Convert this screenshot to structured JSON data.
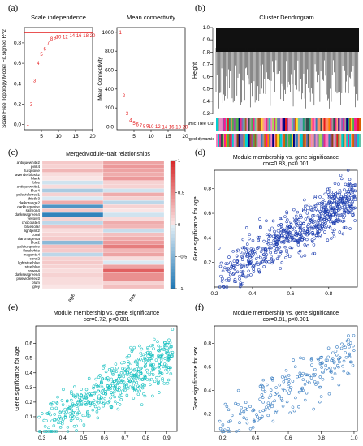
{
  "figure": {
    "panel_labels": [
      "(a)",
      "(b)",
      "(c)",
      "(d)",
      "(e)",
      "(f)"
    ]
  },
  "colors": {
    "red_points": "#e41a1c",
    "blue_points": "#1f3fb0",
    "cyan_points": "#19c0c0",
    "steel_points": "#3a7ec2",
    "heat_pos": "#d62728",
    "heat_neg": "#1f77b4"
  },
  "chart_data": [
    {
      "id": "a1",
      "type": "scatter",
      "title": "Scale independence",
      "xlabel": "Soft Threshold (power)",
      "ylabel": "Scale Free Topology Model Fit,signed R^2",
      "xlim": [
        0,
        20
      ],
      "ylim": [
        -0.05,
        0.95
      ],
      "xticks": [
        5,
        10,
        15,
        20
      ],
      "yticks": [
        0.0,
        0.2,
        0.4,
        0.6,
        0.8
      ],
      "points": [
        {
          "x": 1,
          "y": 0.01,
          "label": "1"
        },
        {
          "x": 2,
          "y": 0.2,
          "label": "2"
        },
        {
          "x": 3,
          "y": 0.43,
          "label": "3"
        },
        {
          "x": 4,
          "y": 0.6,
          "label": "4"
        },
        {
          "x": 5,
          "y": 0.69,
          "label": "5"
        },
        {
          "x": 6,
          "y": 0.74,
          "label": "6"
        },
        {
          "x": 7,
          "y": 0.8,
          "label": "7"
        },
        {
          "x": 8,
          "y": 0.84,
          "label": "8"
        },
        {
          "x": 9,
          "y": 0.85,
          "label": "9"
        },
        {
          "x": 10,
          "y": 0.86,
          "label": "10"
        },
        {
          "x": 12,
          "y": 0.86,
          "label": "12"
        },
        {
          "x": 14,
          "y": 0.87,
          "label": "14"
        },
        {
          "x": 16,
          "y": 0.87,
          "label": "16"
        },
        {
          "x": 18,
          "y": 0.87,
          "label": "18"
        },
        {
          "x": 20,
          "y": 0.87,
          "label": "20"
        }
      ],
      "hline": 0.9
    },
    {
      "id": "a2",
      "type": "scatter",
      "title": "Mean connectivity",
      "xlabel": "Soft Threshold (power)",
      "ylabel": "Mean Connectivity",
      "xlim": [
        0,
        20
      ],
      "ylim": [
        -30,
        1050
      ],
      "xticks": [
        5,
        10,
        15,
        20
      ],
      "yticks": [
        0,
        200,
        400,
        600,
        800,
        1000
      ],
      "points": [
        {
          "x": 1,
          "y": 1000,
          "label": "1"
        },
        {
          "x": 2,
          "y": 330,
          "label": "2"
        },
        {
          "x": 3,
          "y": 140,
          "label": "3"
        },
        {
          "x": 4,
          "y": 70,
          "label": "4"
        },
        {
          "x": 5,
          "y": 40,
          "label": "5"
        },
        {
          "x": 6,
          "y": 25,
          "label": "6"
        },
        {
          "x": 7,
          "y": 15,
          "label": "7"
        },
        {
          "x": 8,
          "y": 10,
          "label": "8"
        },
        {
          "x": 9,
          "y": 7,
          "label": "9"
        },
        {
          "x": 10,
          "y": 5,
          "label": "10"
        },
        {
          "x": 12,
          "y": 3,
          "label": "12"
        },
        {
          "x": 14,
          "y": 2,
          "label": "14"
        },
        {
          "x": 16,
          "y": 1,
          "label": "16"
        },
        {
          "x": 18,
          "y": 1,
          "label": "18"
        },
        {
          "x": 20,
          "y": 0,
          "label": "20"
        }
      ]
    },
    {
      "id": "b",
      "type": "other",
      "title": "Cluster Dendrogram",
      "ylabel": "Height",
      "ylim": [
        0.3,
        1.0
      ],
      "yticks": [
        0.3,
        0.4,
        0.5,
        0.6,
        0.7,
        0.8,
        0.9,
        1.0
      ],
      "row_labels": [
        "Dynamic Tree Cut",
        "Merged dynamic"
      ]
    },
    {
      "id": "c",
      "type": "heatmap",
      "title": "MergedModule−trait relationships",
      "columns": [
        "age",
        "sex"
      ],
      "rows": [
        "antiquewhite2",
        "pink4",
        "turquoise",
        "lavenderblush2",
        "black",
        "blue",
        "antiquewhite1",
        "blue4",
        "palevioletred1",
        "thistle3",
        "darkorange2",
        "darkturquoise",
        "salmon4",
        "darkseagreen4",
        "yellow4",
        "chocolate4",
        "bluesolar",
        "lightpink2",
        "coral",
        "darkmagenta",
        "blue2",
        "paleturquoise",
        "floralwhite",
        "magenta4",
        "coral2",
        "lightsteelblue",
        "steelblue",
        "brown4",
        "darkseagreen4",
        "palevioletred2",
        "plum",
        "grey"
      ],
      "values": [
        [
          0.15,
          0.35
        ],
        [
          0.1,
          0.4
        ],
        [
          0.25,
          0.35
        ],
        [
          0.05,
          0.3
        ],
        [
          0.0,
          0.4
        ],
        [
          -0.1,
          0.1
        ],
        [
          0.05,
          0.1
        ],
        [
          -0.3,
          -0.1
        ],
        [
          0.1,
          0.3
        ],
        [
          -0.05,
          0.1
        ],
        [
          0.3,
          -0.2
        ],
        [
          -0.75,
          0.1
        ],
        [
          0.15,
          0.0
        ],
        [
          -0.9,
          -0.1
        ],
        [
          0.1,
          0.05
        ],
        [
          -0.2,
          0.3
        ],
        [
          0.2,
          0.25
        ],
        [
          0.05,
          -0.15
        ],
        [
          0.1,
          0.2
        ],
        [
          0.15,
          0.3
        ],
        [
          -0.45,
          0.4
        ],
        [
          0.2,
          0.55
        ],
        [
          0.15,
          0.25
        ],
        [
          -0.2,
          0.35
        ],
        [
          0.1,
          0.05
        ],
        [
          0.15,
          -0.05
        ],
        [
          0.1,
          0.35
        ],
        [
          0.05,
          0.7
        ],
        [
          0.1,
          0.45
        ],
        [
          0.05,
          0.45
        ],
        [
          0.05,
          0.1
        ],
        [
          0.0,
          0.2
        ]
      ],
      "colorbar_ticks": [
        1,
        0.5,
        0,
        -0.5,
        -1
      ],
      "colorbar_labels": [
        "1",
        "0.5",
        "0",
        "−0.5",
        "−1"
      ]
    },
    {
      "id": "d",
      "type": "scatter",
      "title": "Module membership vs. gene significance",
      "subtitle": "cor=0.83, p<0.001",
      "xlabel": "",
      "ylabel": "Gene significance for age",
      "xlim": [
        0.2,
        0.95
      ],
      "ylim": [
        0.0,
        0.95
      ],
      "xticks": [
        0.2,
        0.4,
        0.6,
        0.8
      ],
      "yticks": [
        0.2,
        0.4,
        0.6,
        0.8
      ],
      "cor": 0.83,
      "n": 700
    },
    {
      "id": "e",
      "type": "scatter",
      "title": "Module membership vs. gene significance",
      "subtitle": "cor=0.72, p<0.001",
      "xlabel": "",
      "ylabel": "Gene significance for age",
      "xlim": [
        0.27,
        0.95
      ],
      "ylim": [
        0.0,
        0.72
      ],
      "xticks": [
        0.3,
        0.4,
        0.5,
        0.6,
        0.7,
        0.8,
        0.9
      ],
      "yticks": [
        0.1,
        0.2,
        0.3,
        0.4,
        0.5,
        0.6
      ],
      "cor": 0.72,
      "n": 500
    },
    {
      "id": "f",
      "type": "scatter",
      "title": "Module membership vs. gene significance",
      "subtitle": "cor=0.81, p<0.001",
      "xlabel": "",
      "ylabel": "Gene significance for sex",
      "xlim": [
        0.15,
        1.02
      ],
      "ylim": [
        0.05,
        0.95
      ],
      "xticks": [
        0.2,
        0.4,
        0.6,
        0.8,
        1.0
      ],
      "yticks": [
        0.2,
        0.4,
        0.6,
        0.8
      ],
      "cor": 0.81,
      "n": 220
    }
  ]
}
